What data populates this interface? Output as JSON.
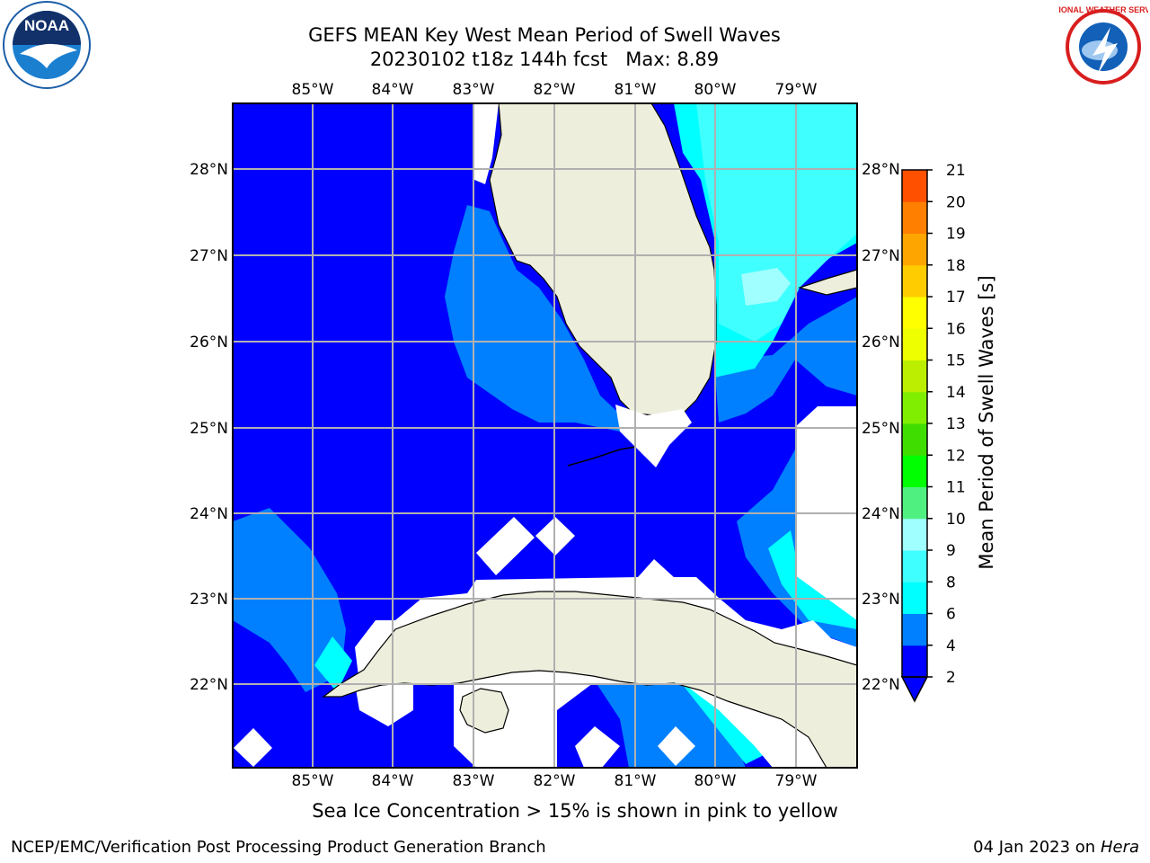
{
  "title": {
    "line1": "GEFS MEAN Key West Mean Period of Swell Waves",
    "line2": "20230102 t18z 144h fcst   Max: 8.89"
  },
  "map": {
    "lon_ticks": [
      "85°W",
      "84°W",
      "83°W",
      "82°W",
      "81°W",
      "80°W",
      "79°W"
    ],
    "lat_ticks": [
      "28°N",
      "27°N",
      "26°N",
      "25°N",
      "24°N",
      "23°N",
      "22°N"
    ],
    "colors": {
      "land": "#eeeedd",
      "no_data": "#ffffff",
      "c2": "#0000ff",
      "c4": "#0080ff",
      "c6": "#00ffff",
      "c7": "#40ffff",
      "c8": "#a0ffff"
    }
  },
  "colorbar": {
    "label": "Mean Period of Swell Waves [s]",
    "ticks": [
      "2",
      "4",
      "6",
      "8",
      "9",
      "10",
      "11",
      "12",
      "13",
      "14",
      "15",
      "16",
      "17",
      "18",
      "19",
      "20",
      "21"
    ],
    "colors": [
      "#0000ff",
      "#0080ff",
      "#00ffff",
      "#40ffff",
      "#a0ffff",
      "#50f080",
      "#00ff00",
      "#40dd00",
      "#80ee00",
      "#bbee00",
      "#eeff00",
      "#ffff00",
      "#ffcc00",
      "#ffa500",
      "#ff8000",
      "#ff5000",
      "#ff2a00",
      "#ff0000"
    ],
    "extend_color": "#0000ff"
  },
  "note": "Sea Ice Concentration > 15% is shown in pink to yellow",
  "footer": {
    "left": "NCEP/EMC/Verification Post Processing Product Generation Branch",
    "right_date": "04 Jan 2023 on ",
    "right_machine": "Hera"
  },
  "logos": {
    "noaa_text": "NOAA",
    "nws_text": "NATIONAL WEATHER SERVICE"
  }
}
